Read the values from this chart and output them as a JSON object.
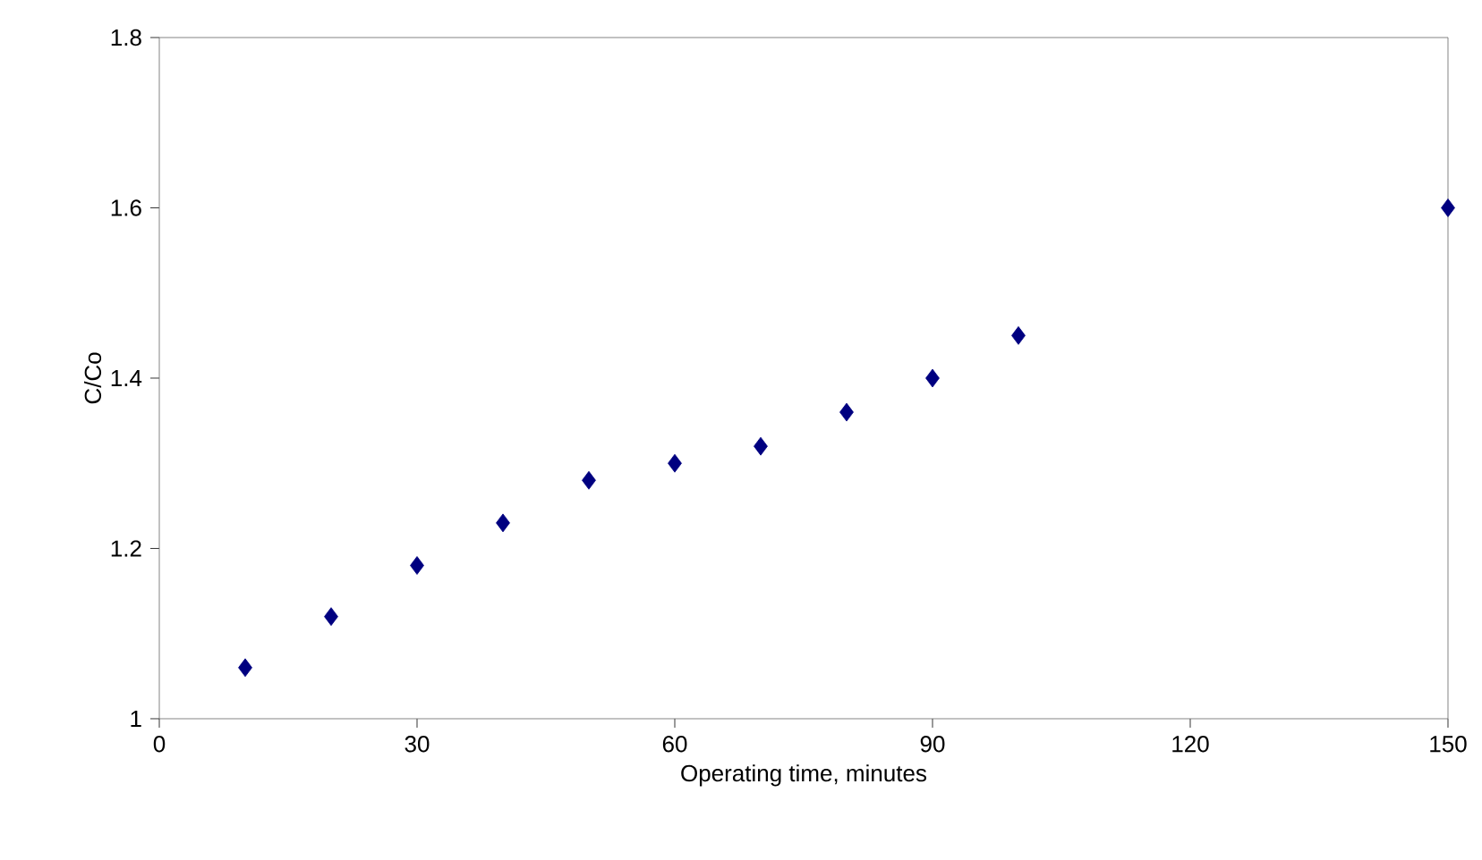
{
  "chart_data": {
    "type": "scatter",
    "xlabel": "Operating time, minutes",
    "ylabel": "C/Co",
    "x": [
      10,
      20,
      30,
      40,
      50,
      60,
      70,
      80,
      90,
      100,
      150
    ],
    "values": [
      1.06,
      1.12,
      1.18,
      1.23,
      1.28,
      1.3,
      1.32,
      1.36,
      1.4,
      1.45,
      1.6
    ],
    "color": "#000080",
    "marker": "diamond",
    "xlim": [
      0,
      150
    ],
    "ylim": [
      1,
      1.8
    ],
    "xticks": [
      0,
      30,
      60,
      90,
      120,
      150
    ],
    "yticks": [
      1,
      1.2,
      1.4,
      1.6,
      1.8
    ]
  }
}
